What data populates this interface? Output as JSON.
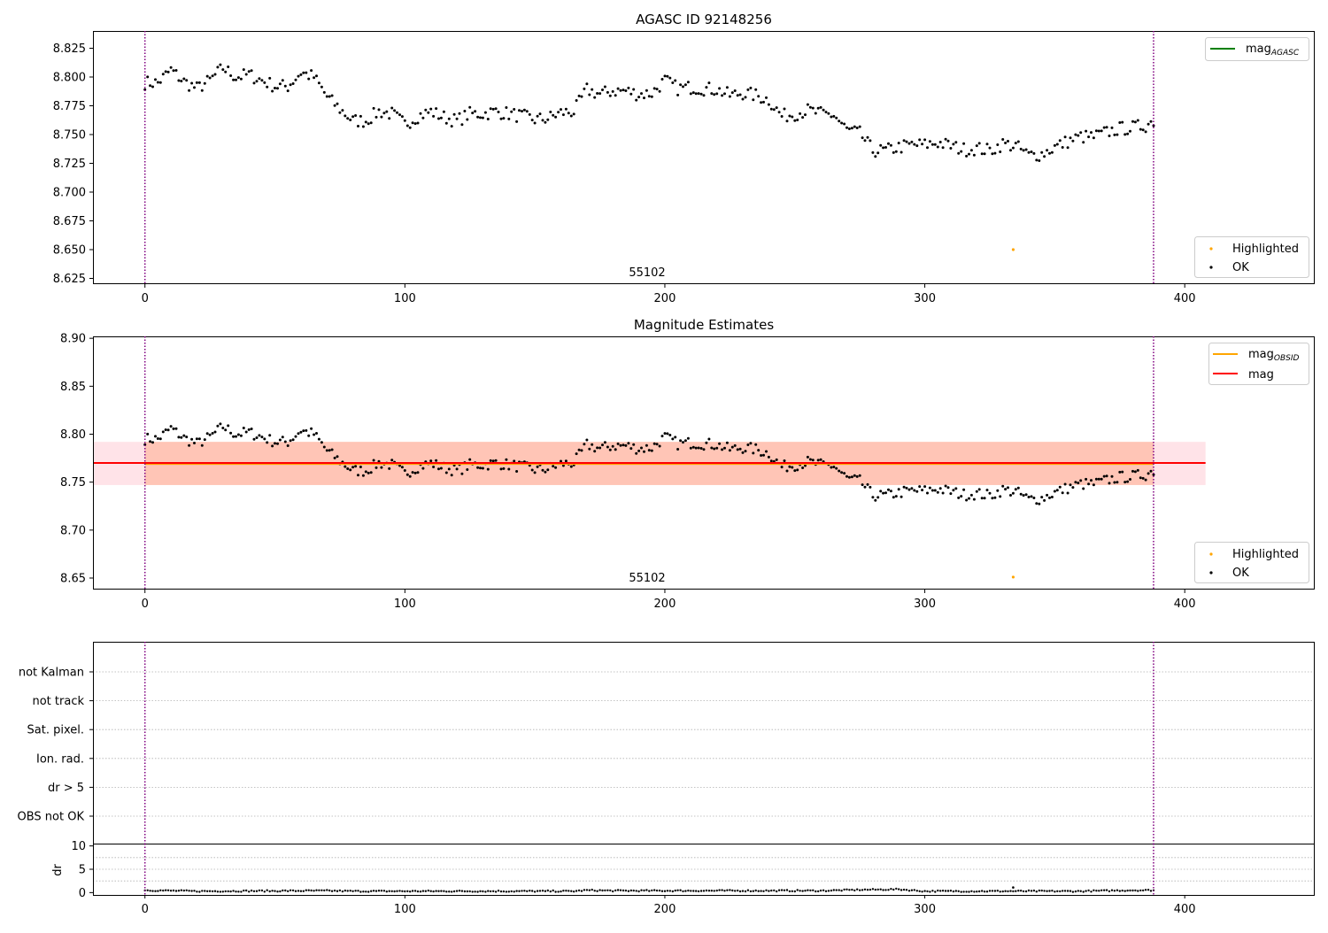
{
  "figure": {
    "colors": {
      "ok": "#000000",
      "highlighted": "#ffa500",
      "mag_agasc": "#008000",
      "mag_obsid": "#ffa500",
      "mag": "#ff0000",
      "obsid_boundary": "#800080",
      "band_obsid": "#ffa07a",
      "band_mag": "#ffc0cb",
      "grid": "#b0b0b0"
    }
  },
  "chart_data": [
    {
      "type": "scatter",
      "title": "AGASC ID 92148256",
      "xlim": [
        -20,
        450
      ],
      "ylim": [
        8.62,
        8.84
      ],
      "xticks": [
        "0",
        "100",
        "200",
        "300",
        "400"
      ],
      "yticks": [
        "8.625",
        "8.650",
        "8.675",
        "8.700",
        "8.725",
        "8.750",
        "8.775",
        "8.800",
        "8.825"
      ],
      "obsid_label": "55102",
      "obsid_boundaries": [
        0,
        388
      ],
      "series": [
        {
          "name": "OK",
          "marker": "dot",
          "source": "mag_samples"
        },
        {
          "name": "Highlighted",
          "marker": "dot",
          "points": [
            [
              334,
              8.65
            ]
          ]
        }
      ],
      "lines": [
        {
          "name": "mag_AGASC",
          "label_main": "mag",
          "label_sub": "AGASC"
        }
      ],
      "legend_lines_position": "top-right",
      "legend_points_position": "bottom-right"
    },
    {
      "type": "scatter",
      "title": "Magnitude Estimates",
      "xlim": [
        -20,
        450
      ],
      "ylim": [
        8.638,
        8.902
      ],
      "xticks": [
        "0",
        "100",
        "200",
        "300",
        "400"
      ],
      "yticks": [
        "8.65",
        "8.70",
        "8.75",
        "8.80",
        "8.85",
        "8.90"
      ],
      "obsid_label": "55102",
      "obsid_boundaries": [
        0,
        388
      ],
      "series": [
        {
          "name": "OK",
          "marker": "dot",
          "source": "mag_samples"
        },
        {
          "name": "Highlighted",
          "marker": "dot",
          "points": [
            [
              334,
              8.651
            ]
          ]
        }
      ],
      "lines": [
        {
          "name": "mag_OBSID",
          "label_main": "mag",
          "label_sub": "OBSID",
          "y": 8.769,
          "band": [
            8.747,
            8.792
          ],
          "x_range": [
            -20,
            408
          ]
        },
        {
          "name": "mag",
          "label_main": "mag",
          "label_sub": "",
          "y": 8.77,
          "band": [
            8.747,
            8.792
          ],
          "x_range": [
            -20,
            408
          ]
        }
      ],
      "legend_lines_position": "top-right",
      "legend_points_position": "bottom-right"
    },
    {
      "type": "scatter",
      "title": "",
      "xlim": [
        -20,
        450
      ],
      "flag_rows": [
        "OBS not OK",
        "dr > 5",
        "Ion. rad.",
        "Sat. pixel.",
        "not track",
        "not Kalman"
      ],
      "obsid_boundaries": [
        0,
        388
      ]
    },
    {
      "type": "scatter",
      "title": "",
      "ylabel": "dr",
      "xlim": [
        -20,
        450
      ],
      "ylim": [
        -0.5,
        10.5
      ],
      "xticks": [
        "0",
        "100",
        "200",
        "300",
        "400"
      ],
      "yticks": [
        "0",
        "5",
        "10"
      ],
      "obsid_boundaries": [
        0,
        388
      ],
      "series": [
        {
          "name": "dr",
          "marker": "dot",
          "source": "dr_samples"
        },
        {
          "name": "Highlighted",
          "marker": "dot",
          "points": [
            [
              334,
              1.1
            ]
          ]
        }
      ]
    }
  ],
  "mag_samples": {
    "x_range": [
      0,
      388
    ],
    "count": 389,
    "anchors": [
      [
        0,
        8.795
      ],
      [
        5,
        8.795
      ],
      [
        10,
        8.806
      ],
      [
        15,
        8.796
      ],
      [
        20,
        8.79
      ],
      [
        25,
        8.797
      ],
      [
        30,
        8.808
      ],
      [
        35,
        8.8
      ],
      [
        40,
        8.802
      ],
      [
        45,
        8.797
      ],
      [
        50,
        8.792
      ],
      [
        55,
        8.792
      ],
      [
        60,
        8.804
      ],
      [
        65,
        8.8
      ],
      [
        70,
        8.783
      ],
      [
        75,
        8.772
      ],
      [
        80,
        8.762
      ],
      [
        85,
        8.762
      ],
      [
        90,
        8.77
      ],
      [
        95,
        8.768
      ],
      [
        100,
        8.759
      ],
      [
        105,
        8.766
      ],
      [
        110,
        8.77
      ],
      [
        115,
        8.765
      ],
      [
        120,
        8.762
      ],
      [
        125,
        8.768
      ],
      [
        130,
        8.768
      ],
      [
        135,
        8.77
      ],
      [
        140,
        8.768
      ],
      [
        145,
        8.766
      ],
      [
        150,
        8.763
      ],
      [
        155,
        8.764
      ],
      [
        160,
        8.769
      ],
      [
        165,
        8.77
      ],
      [
        170,
        8.789
      ],
      [
        175,
        8.785
      ],
      [
        180,
        8.788
      ],
      [
        185,
        8.788
      ],
      [
        190,
        8.785
      ],
      [
        195,
        8.786
      ],
      [
        200,
        8.797
      ],
      [
        205,
        8.79
      ],
      [
        210,
        8.791
      ],
      [
        215,
        8.79
      ],
      [
        220,
        8.789
      ],
      [
        225,
        8.784
      ],
      [
        230,
        8.786
      ],
      [
        235,
        8.784
      ],
      [
        240,
        8.78
      ],
      [
        245,
        8.766
      ],
      [
        250,
        8.768
      ],
      [
        255,
        8.771
      ],
      [
        260,
        8.768
      ],
      [
        265,
        8.767
      ],
      [
        270,
        8.754
      ],
      [
        275,
        8.751
      ],
      [
        280,
        8.736
      ],
      [
        285,
        8.736
      ],
      [
        290,
        8.739
      ],
      [
        295,
        8.741
      ],
      [
        300,
        8.741
      ],
      [
        305,
        8.743
      ],
      [
        310,
        8.74
      ],
      [
        315,
        8.737
      ],
      [
        320,
        8.738
      ],
      [
        325,
        8.736
      ],
      [
        330,
        8.742
      ],
      [
        335,
        8.74
      ],
      [
        340,
        8.732
      ],
      [
        345,
        8.733
      ],
      [
        350,
        8.739
      ],
      [
        355,
        8.744
      ],
      [
        360,
        8.748
      ],
      [
        365,
        8.748
      ],
      [
        370,
        8.752
      ],
      [
        375,
        8.755
      ],
      [
        380,
        8.756
      ],
      [
        385,
        8.758
      ],
      [
        388,
        8.762
      ]
    ],
    "noise_amplitude": 0.006
  },
  "dr_samples": {
    "x_range": [
      0,
      388
    ],
    "count": 389,
    "anchors": [
      [
        0,
        0.5
      ],
      [
        20,
        0.3
      ],
      [
        70,
        0.4
      ],
      [
        80,
        0.3
      ],
      [
        100,
        0.3
      ],
      [
        165,
        0.3
      ],
      [
        170,
        0.5
      ],
      [
        180,
        0.4
      ],
      [
        200,
        0.4
      ],
      [
        260,
        0.4
      ],
      [
        275,
        0.6
      ],
      [
        290,
        0.7
      ],
      [
        300,
        0.3
      ],
      [
        340,
        0.3
      ],
      [
        360,
        0.3
      ],
      [
        380,
        0.5
      ],
      [
        388,
        0.5
      ]
    ],
    "noise_amplitude": 0.15
  }
}
